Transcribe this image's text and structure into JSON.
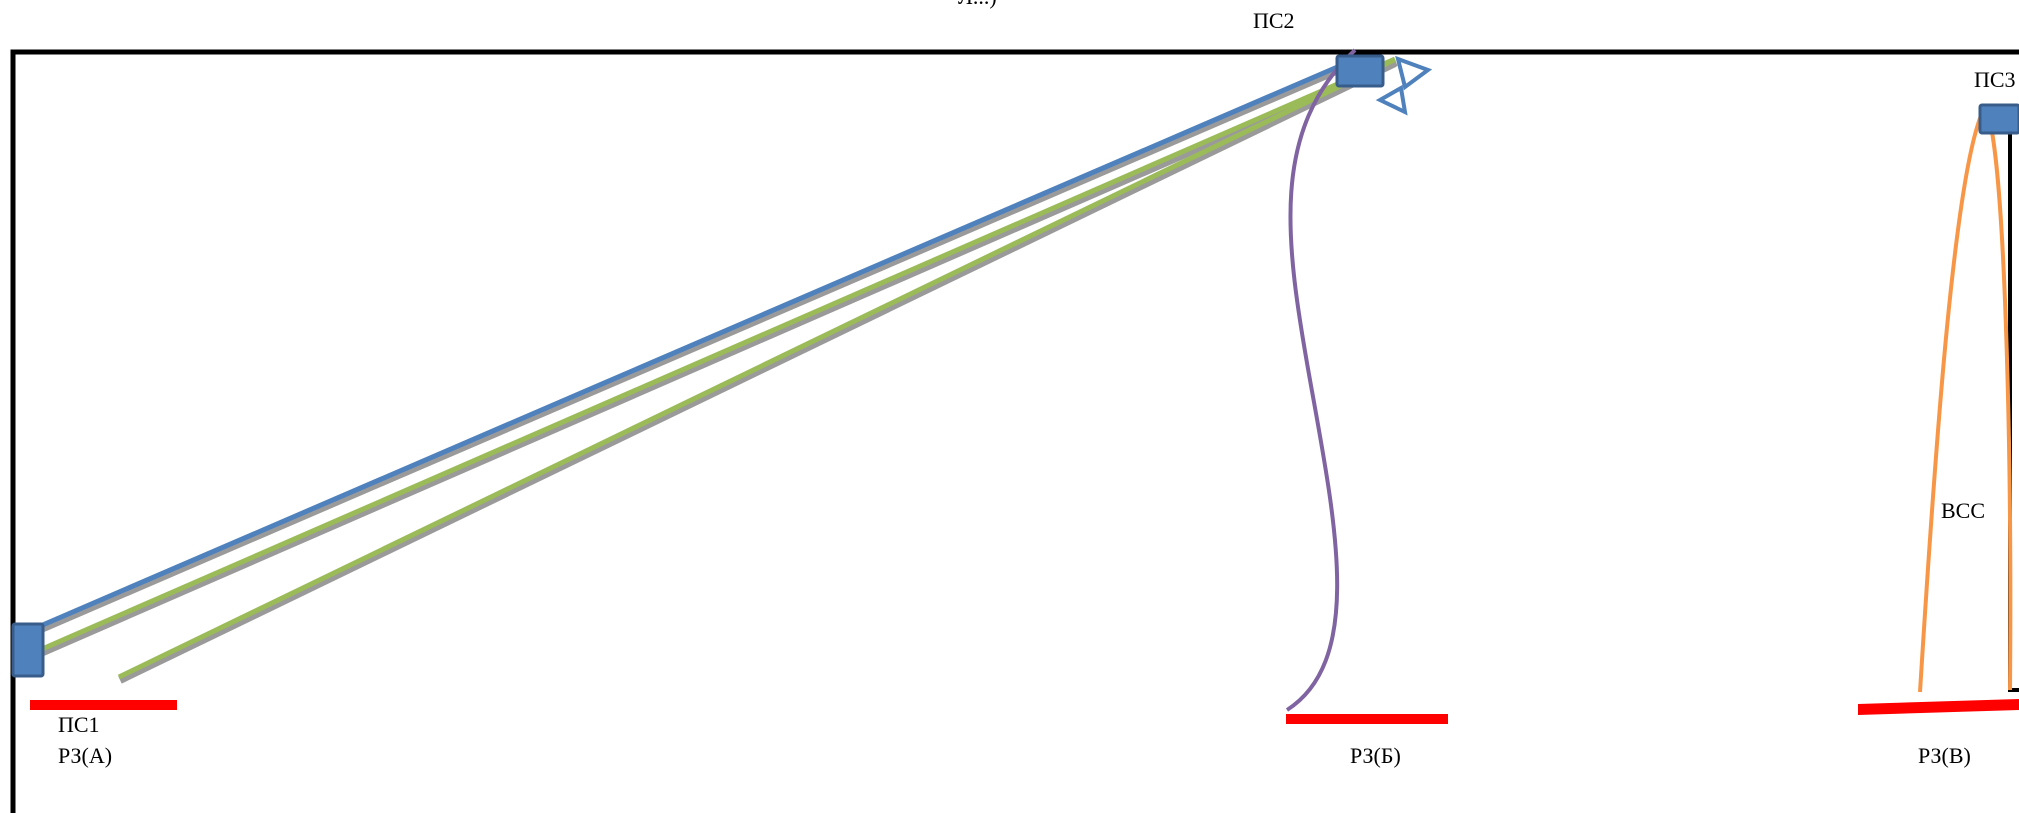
{
  "diagram": {
    "labels": {
      "cut_top": "Л...)",
      "ps1": "ПС1",
      "ps2": "ПС2",
      "ps3": "ПС3",
      "rz_a": "РЗ(А)",
      "rz_b": "РЗ(Б)",
      "rz_v": "РЗ(В)",
      "vss": "ВСС"
    },
    "colors": {
      "frame": "#000000",
      "station_fill": "#4f81bd",
      "station_stroke": "#385d8a",
      "link_blue": "#4f81bd",
      "link_green": "#9bbb59",
      "link_gray": "#9a9a9a",
      "link_purple": "#8064a2",
      "link_orange": "#f79646",
      "zone_red": "#ff0000",
      "antenna": "#4f81bd"
    }
  }
}
